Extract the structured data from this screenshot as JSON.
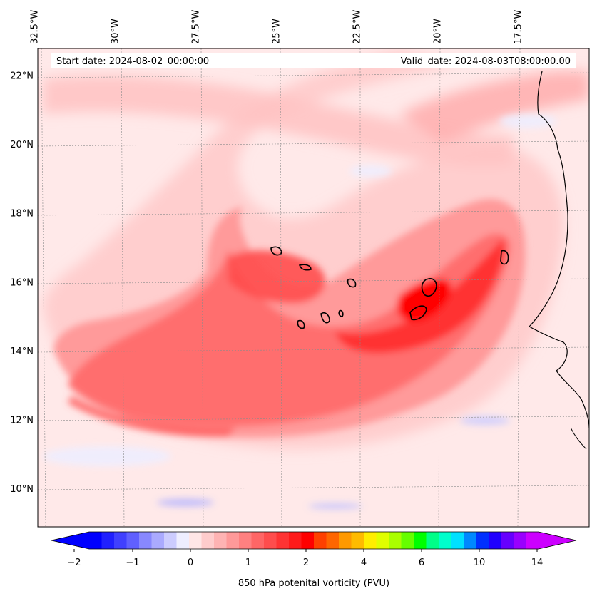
{
  "chart_data": {
    "type": "heatmap",
    "title": "",
    "variable": "850 hPa potential vorticity",
    "colorbar_label": "850 hPa potenital vorticity (PVU)",
    "colorbar_ticks": [
      "−2",
      "−1",
      "0",
      "1",
      "2",
      "4",
      "6",
      "10",
      "14"
    ],
    "colorbar_tick_values": [
      -2,
      -1,
      0,
      1,
      2,
      4,
      6,
      10,
      14
    ],
    "colorbar_extend": "both",
    "colors": [
      "#0000ff",
      "#2020ff",
      "#4040ff",
      "#6060ff",
      "#8888ff",
      "#aaaaff",
      "#ccccff",
      "#eeeeff",
      "#ffe6e6",
      "#ffcccc",
      "#ffb3b3",
      "#ff9999",
      "#ff8080",
      "#ff6666",
      "#ff4d4d",
      "#ff3333",
      "#ff1a1a",
      "#ff0000",
      "#ff4000",
      "#ff6600",
      "#ff9900",
      "#ffbb00",
      "#ffee00",
      "#e0ff00",
      "#aaff00",
      "#66ff00",
      "#00ff00",
      "#00ff88",
      "#00ffcc",
      "#00e0ff",
      "#0088ff",
      "#0030ff",
      "#2000ff",
      "#6600ff",
      "#9900ff",
      "#cc00ff"
    ],
    "lat_labels": [
      "22°N",
      "20°N",
      "18°N",
      "16°N",
      "14°N",
      "12°N",
      "10°N"
    ],
    "lat_values": [
      22,
      20,
      18,
      16,
      14,
      12,
      10
    ],
    "lon_labels": [
      "32.5°W",
      "30°W",
      "27.5°W",
      "25°W",
      "22.5°W",
      "20°W",
      "17.5°W"
    ],
    "lon_values": [
      -32.5,
      -30,
      -27.5,
      -25,
      -22.5,
      -20,
      -17.5
    ],
    "lat_range": [
      8.9,
      22.8
    ],
    "lon_range": [
      -32.4,
      -15.3
    ],
    "features": [
      {
        "name": "PV band",
        "description": "curved band of positive PV from about 33°W, 13°N across 12°N to 17°W, 17°N",
        "pvu_range": [
          0.5,
          2
        ]
      },
      {
        "name": "PV maximum",
        "description": "strongest values near 20°W, 15°N",
        "pvu_range": [
          1.5,
          2
        ]
      },
      {
        "name": "coastline",
        "description": "West African coast near 16°W-17°W"
      }
    ]
  },
  "info": {
    "start_date": "Start date: 2024-08-02_00:00:00",
    "valid_date": "Valid_date: 2024-08-03T08:00:00.00"
  }
}
